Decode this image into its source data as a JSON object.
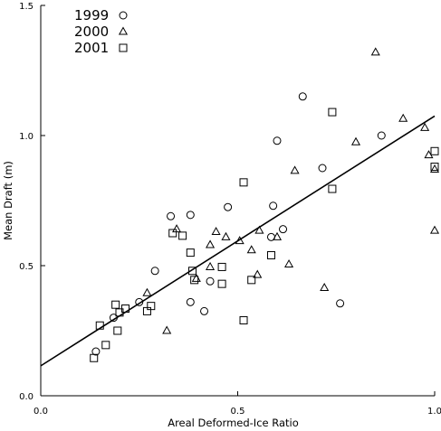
{
  "chart_data": {
    "type": "scatter",
    "xlabel": "Areal Deformed-Ice Ratio",
    "ylabel": "Mean Draft (m)",
    "xlim": [
      0.0,
      1.0
    ],
    "ylim": [
      0.0,
      1.5
    ],
    "xticks": [
      "0.0",
      "0.5",
      "1.0"
    ],
    "yticks": [
      "0.0",
      "0.5",
      "1.0",
      "1.5"
    ],
    "legend_position": "top-left",
    "series": [
      {
        "name": "1999",
        "marker": "circle",
        "points": [
          [
            0.14,
            0.17
          ],
          [
            0.185,
            0.3
          ],
          [
            0.25,
            0.36
          ],
          [
            0.29,
            0.48
          ],
          [
            0.33,
            0.69
          ],
          [
            0.38,
            0.36
          ],
          [
            0.38,
            0.695
          ],
          [
            0.415,
            0.325
          ],
          [
            0.43,
            0.44
          ],
          [
            0.475,
            0.725
          ],
          [
            0.59,
            0.73
          ],
          [
            0.585,
            0.61
          ],
          [
            0.6,
            0.98
          ],
          [
            0.615,
            0.64
          ],
          [
            0.665,
            1.15
          ],
          [
            0.715,
            0.875
          ],
          [
            0.76,
            0.355
          ],
          [
            0.865,
            1.0
          ]
        ]
      },
      {
        "name": "2000",
        "marker": "triangle",
        "points": [
          [
            0.27,
            0.395
          ],
          [
            0.32,
            0.25
          ],
          [
            0.345,
            0.64
          ],
          [
            0.395,
            0.45
          ],
          [
            0.43,
            0.58
          ],
          [
            0.43,
            0.495
          ],
          [
            0.445,
            0.63
          ],
          [
            0.47,
            0.61
          ],
          [
            0.505,
            0.595
          ],
          [
            0.535,
            0.56
          ],
          [
            0.55,
            0.465
          ],
          [
            0.555,
            0.635
          ],
          [
            0.6,
            0.61
          ],
          [
            0.63,
            0.505
          ],
          [
            0.645,
            0.865
          ],
          [
            0.72,
            0.415
          ],
          [
            0.8,
            0.975
          ],
          [
            0.85,
            1.32
          ],
          [
            0.92,
            1.065
          ],
          [
            0.975,
            1.03
          ],
          [
            0.985,
            0.925
          ],
          [
            1.0,
            0.635
          ],
          [
            1.0,
            0.87
          ]
        ]
      },
      {
        "name": "2001",
        "marker": "square",
        "points": [
          [
            0.135,
            0.145
          ],
          [
            0.15,
            0.27
          ],
          [
            0.165,
            0.195
          ],
          [
            0.19,
            0.35
          ],
          [
            0.195,
            0.25
          ],
          [
            0.2,
            0.32
          ],
          [
            0.215,
            0.335
          ],
          [
            0.27,
            0.325
          ],
          [
            0.28,
            0.345
          ],
          [
            0.335,
            0.625
          ],
          [
            0.36,
            0.615
          ],
          [
            0.385,
            0.48
          ],
          [
            0.38,
            0.55
          ],
          [
            0.39,
            0.445
          ],
          [
            0.46,
            0.43
          ],
          [
            0.46,
            0.495
          ],
          [
            0.515,
            0.82
          ],
          [
            0.515,
            0.29
          ],
          [
            0.535,
            0.445
          ],
          [
            0.585,
            0.54
          ],
          [
            0.74,
            1.09
          ],
          [
            0.74,
            0.795
          ],
          [
            1.0,
            0.94
          ],
          [
            1.0,
            0.88
          ]
        ]
      }
    ],
    "fit_line": {
      "x": [
        0.0,
        1.0
      ],
      "y": [
        0.115,
        1.075
      ]
    }
  }
}
